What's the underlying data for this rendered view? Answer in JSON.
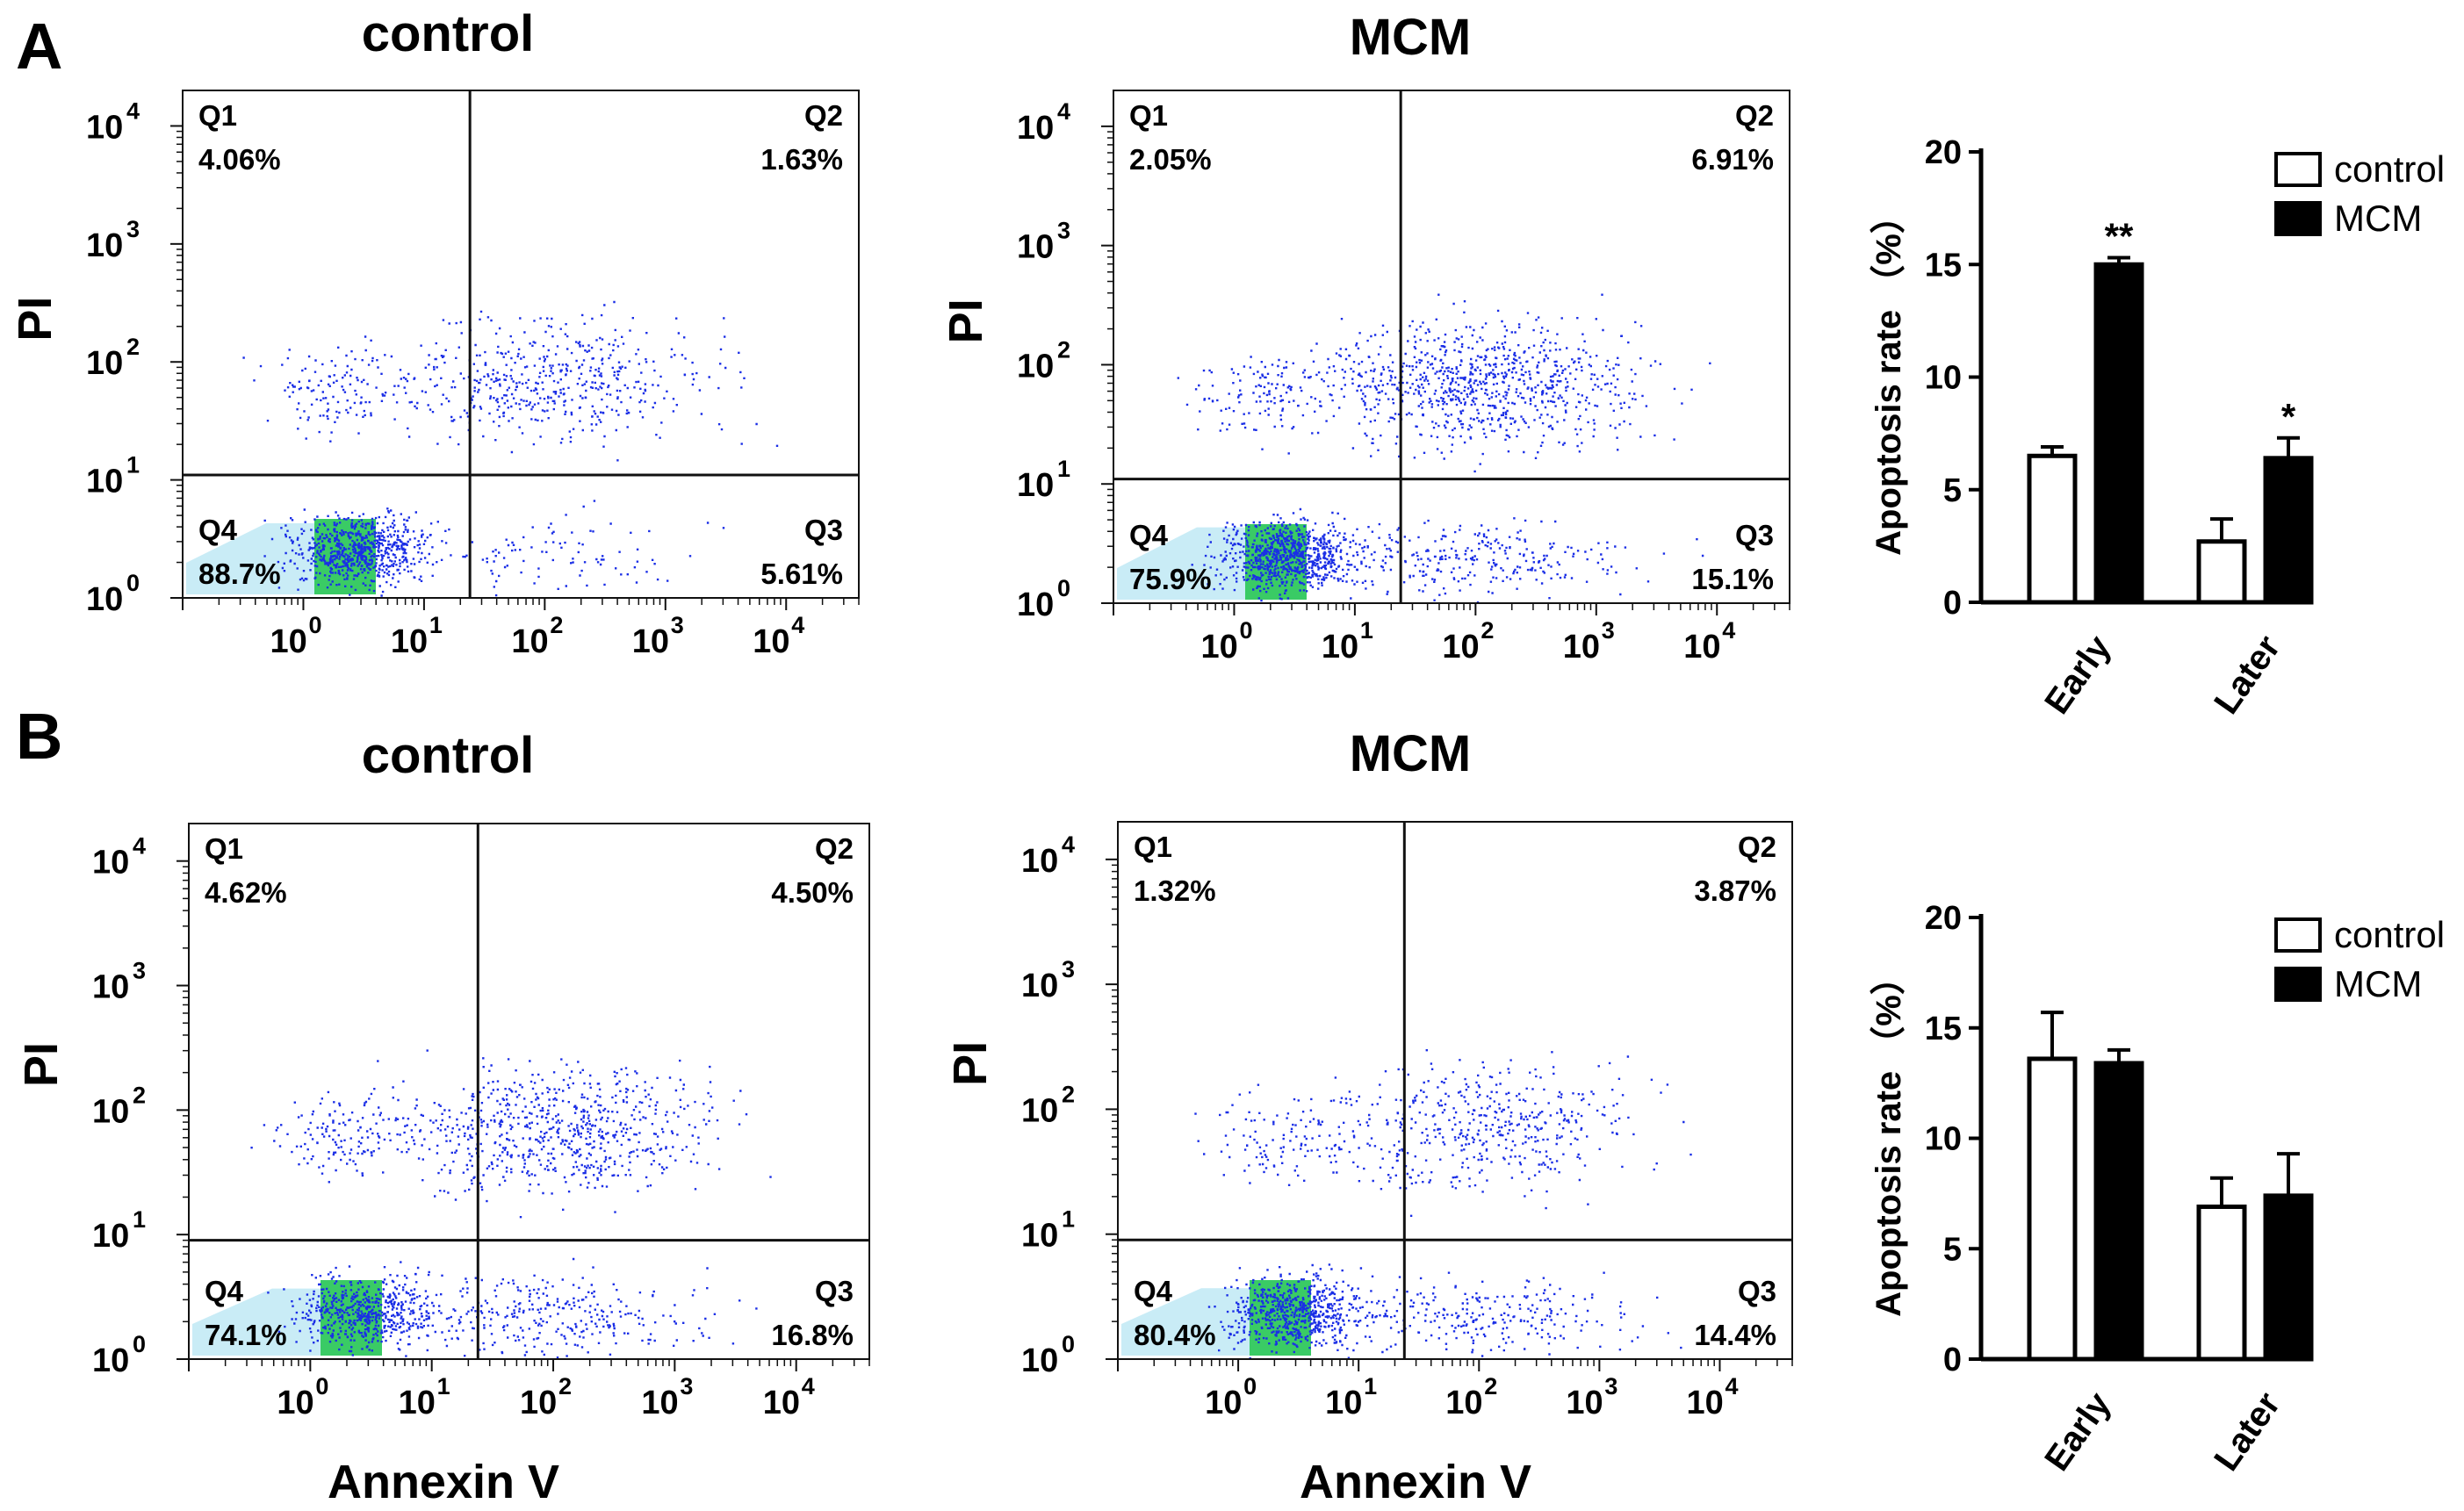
{
  "panels": [
    {
      "letter": "A",
      "x_axis_label": "",
      "y_axis_label": "PI"
    },
    {
      "letter": "B",
      "x_axis_label": "Annexin V",
      "y_axis_label": "PI"
    }
  ],
  "colors": {
    "dots": "#1a2ee6",
    "dense": "#17c24a",
    "cloud": "#bfe9f5",
    "control_bar": "#ffffff",
    "mcm_bar": "#000000"
  },
  "chart_data": [
    {
      "type": "scatter",
      "title": "control",
      "panel": "A",
      "xlabel": "",
      "ylabel": "PI",
      "x_scale": "log",
      "y_scale": "log",
      "xlim": [
        0.1,
        40000
      ],
      "ylim": [
        1,
        20000
      ],
      "x_ticks": [
        "1",
        "10",
        "100",
        "1000",
        "10000"
      ],
      "y_ticks": [
        "1",
        "10",
        "100",
        "1000",
        "10000"
      ],
      "x_gate": 24,
      "y_gate": 11,
      "quadrants": [
        {
          "name": "Q1",
          "value": "4.06%"
        },
        {
          "name": "Q2",
          "value": "1.63%"
        },
        {
          "name": "Q3",
          "value": "5.61%"
        },
        {
          "name": "Q4",
          "value": "88.7%"
        }
      ],
      "density": [
        0.15,
        0.32,
        0.09,
        0.28
      ]
    },
    {
      "type": "scatter",
      "title": "MCM",
      "panel": "A",
      "xlabel": "",
      "ylabel": "PI",
      "x_scale": "log",
      "y_scale": "log",
      "xlim": [
        0.1,
        40000
      ],
      "ylim": [
        1,
        20000
      ],
      "x_ticks": [
        "1",
        "10",
        "100",
        "1000",
        "10000"
      ],
      "y_ticks": [
        "1",
        "10",
        "100",
        "1000",
        "10000"
      ],
      "x_gate": 24,
      "y_gate": 11,
      "quadrants": [
        {
          "name": "Q1",
          "value": "2.05%"
        },
        {
          "name": "Q2",
          "value": "6.91%"
        },
        {
          "name": "Q3",
          "value": "15.1%"
        },
        {
          "name": "Q4",
          "value": "75.9%"
        }
      ],
      "density": [
        0.15,
        0.55,
        0.28,
        0.32
      ]
    },
    {
      "type": "bar",
      "panel": "A",
      "title": "",
      "categories": [
        "Early",
        "Later"
      ],
      "series": [
        {
          "name": "control",
          "values": [
            6.5,
            2.7
          ],
          "errors": [
            0.4,
            1.0
          ]
        },
        {
          "name": "MCM",
          "values": [
            15.0,
            6.4
          ],
          "errors": [
            0.3,
            0.9
          ]
        }
      ],
      "significance": [
        {
          "category": "Early",
          "series": "MCM",
          "mark": "**"
        },
        {
          "category": "Later",
          "series": "MCM",
          "mark": "*"
        }
      ],
      "xlabel": "",
      "ylabel": "Apoptosis rate （%）",
      "ylim": [
        0,
        20
      ],
      "yticks": [
        "0",
        "5",
        "10",
        "15",
        "20"
      ],
      "legend": "top-right"
    },
    {
      "type": "scatter",
      "title": "control",
      "panel": "B",
      "xlabel": "Annexin V",
      "ylabel": "PI",
      "x_scale": "log",
      "y_scale": "log",
      "xlim": [
        0.1,
        40000
      ],
      "ylim": [
        1,
        20000
      ],
      "x_ticks": [
        "1",
        "10",
        "100",
        "1000",
        "10000"
      ],
      "y_ticks": [
        "1",
        "10",
        "100",
        "1000",
        "10000"
      ],
      "x_gate": 24,
      "y_gate": 9,
      "quadrants": [
        {
          "name": "Q1",
          "value": "4.62%"
        },
        {
          "name": "Q2",
          "value": "4.50%"
        },
        {
          "name": "Q3",
          "value": "16.8%"
        },
        {
          "name": "Q4",
          "value": "74.1%"
        }
      ],
      "density": [
        0.15,
        0.45,
        0.3,
        0.22
      ]
    },
    {
      "type": "scatter",
      "title": "MCM",
      "panel": "B",
      "xlabel": "Annexin V",
      "ylabel": "PI",
      "x_scale": "log",
      "y_scale": "log",
      "xlim": [
        0.1,
        40000
      ],
      "ylim": [
        1,
        20000
      ],
      "x_ticks": [
        "1",
        "10",
        "100",
        "1000",
        "10000"
      ],
      "y_ticks": [
        "1",
        "10",
        "100",
        "1000",
        "10000"
      ],
      "x_gate": 24,
      "y_gate": 9,
      "quadrants": [
        {
          "name": "Q1",
          "value": "1.32%"
        },
        {
          "name": "Q2",
          "value": "3.87%"
        },
        {
          "name": "Q3",
          "value": "14.4%"
        },
        {
          "name": "Q4",
          "value": "80.4%"
        }
      ],
      "density": [
        0.12,
        0.3,
        0.25,
        0.25
      ]
    },
    {
      "type": "bar",
      "panel": "B",
      "title": "",
      "categories": [
        "Early",
        "Later"
      ],
      "series": [
        {
          "name": "control",
          "values": [
            13.6,
            6.9
          ],
          "errors": [
            2.1,
            1.3
          ]
        },
        {
          "name": "MCM",
          "values": [
            13.4,
            7.4
          ],
          "errors": [
            0.6,
            1.9
          ]
        }
      ],
      "significance": [],
      "xlabel": "",
      "ylabel": "Apoptosis rate （%）",
      "ylim": [
        0,
        20
      ],
      "yticks": [
        "0",
        "5",
        "10",
        "15",
        "20"
      ],
      "legend": "top-right"
    }
  ]
}
